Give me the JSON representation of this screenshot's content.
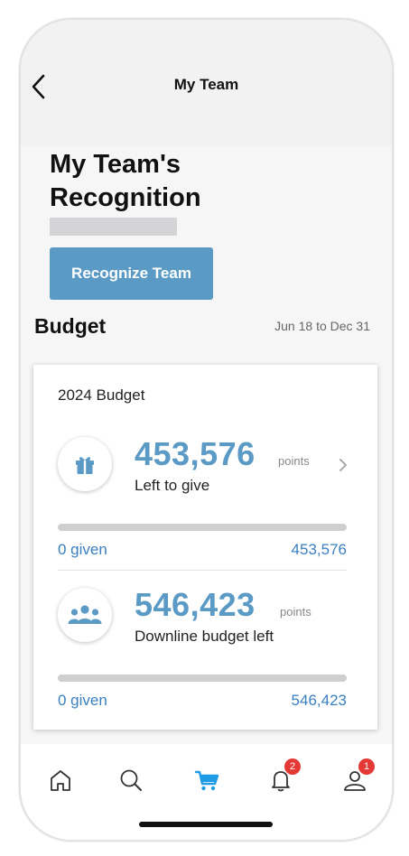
{
  "header": {
    "title": "My Team",
    "back_icon": "chevron-left-icon"
  },
  "page": {
    "title": "My Team's Recognition"
  },
  "actions": {
    "recognize_label": "Recognize Team"
  },
  "budget": {
    "section_title": "Budget",
    "date_range": "Jun 18 to Dec 31",
    "card_title": "2024 Budget",
    "left_to_give": {
      "icon": "gift-icon",
      "value": "453,576",
      "unit": "points",
      "label": "Left to give",
      "given_label": "0 given",
      "total": "453,576",
      "given_fraction": 0
    },
    "downline": {
      "icon": "team-icon",
      "value": "546,423",
      "unit": "points",
      "label": "Downline budget left",
      "given_label": "0 given",
      "total": "546,423",
      "given_fraction": 0
    }
  },
  "tabbar": {
    "items": [
      {
        "name": "home",
        "icon": "home-icon"
      },
      {
        "name": "search",
        "icon": "search-icon"
      },
      {
        "name": "cart",
        "icon": "cart-icon",
        "active": true
      },
      {
        "name": "notifications",
        "icon": "bell-icon",
        "badge": "2"
      },
      {
        "name": "profile",
        "icon": "user-icon",
        "badge": "1"
      }
    ]
  },
  "colors": {
    "accent": "#5a9ac5",
    "link": "#3a7fc0",
    "badge": "#e53935"
  }
}
